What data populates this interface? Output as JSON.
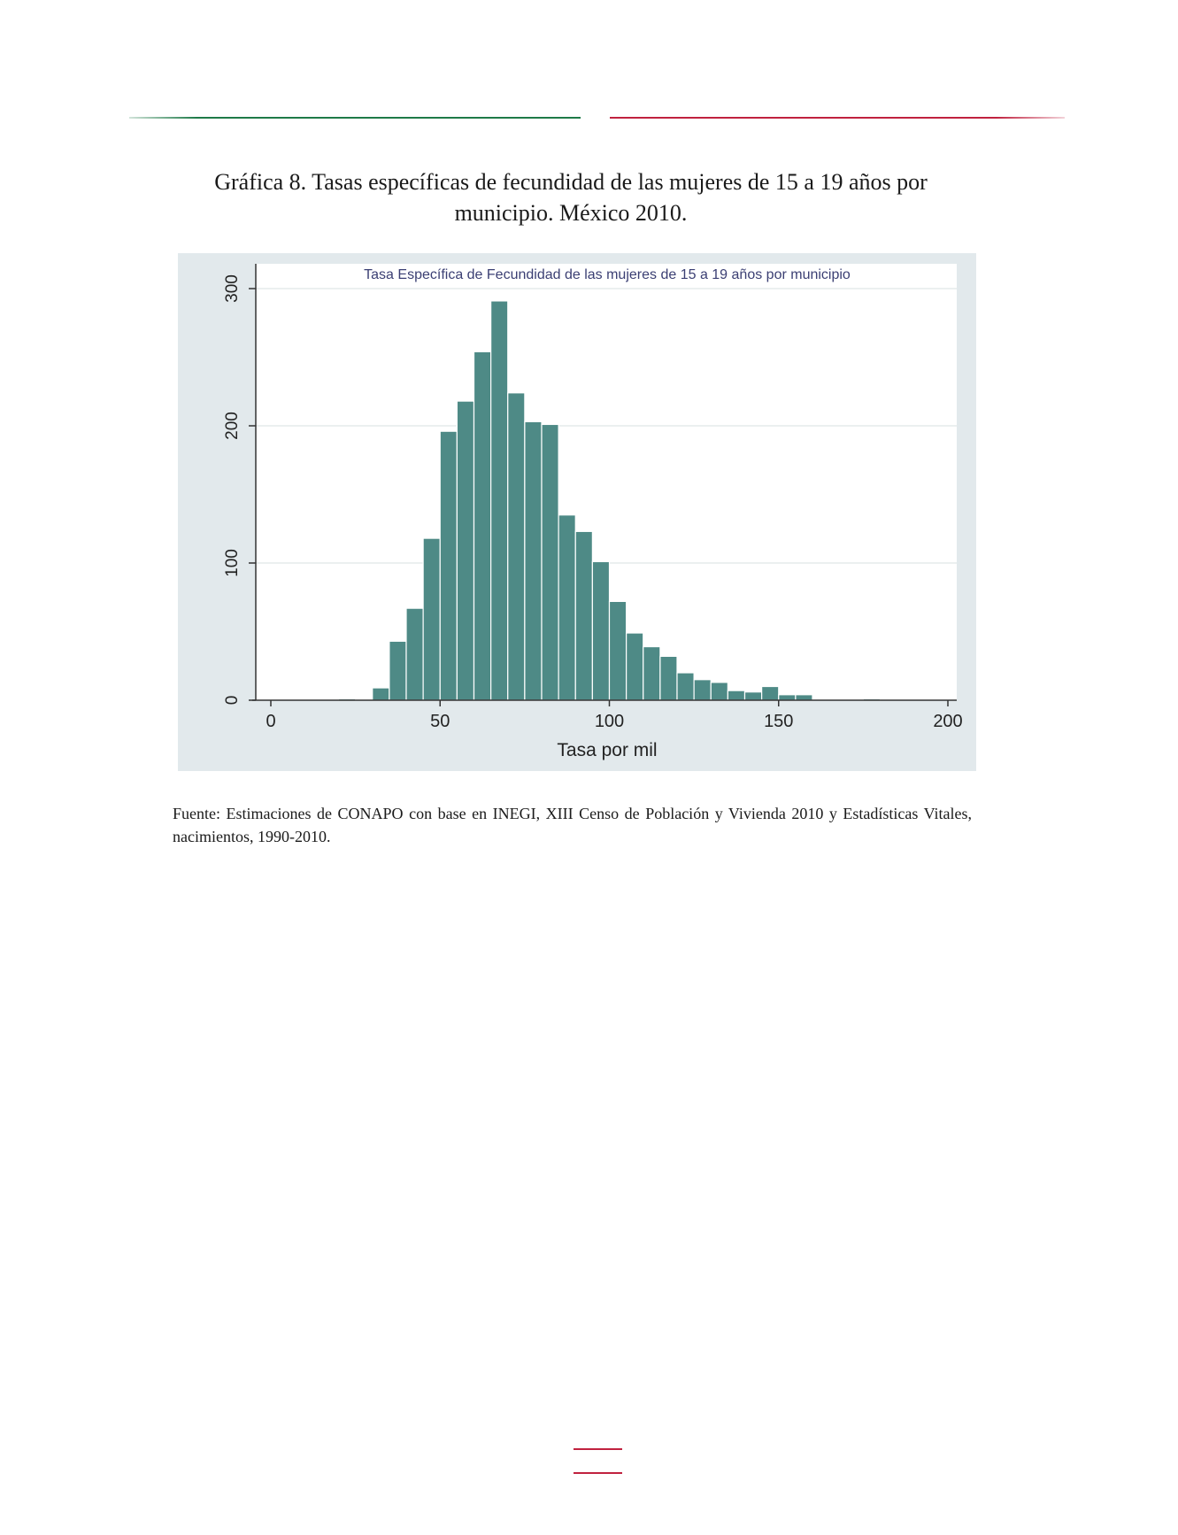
{
  "caption": {
    "line1": "Gráfica 8. Tasas específicas de fecundidad de las mujeres de 15 a 19 años por",
    "line2": "municipio. México 2010."
  },
  "source": "Fuente: Estimaciones de CONAPO con base en INEGI, XIII Censo de Población y Vivienda 2010 y Estadísticas Vitales, nacimientos, 1990-2010.",
  "colors": {
    "rule_left": "#1e7a48",
    "rule_right": "#c0223f",
    "bars": "#4e8a86",
    "panel": "#e2e9ec",
    "title_text": "#3b3f73"
  },
  "chart_data": {
    "type": "bar",
    "title": "Tasa Específica de Fecundidad de las mujeres de 15 a 19 años por municipio",
    "xlabel": "Tasa por mil",
    "ylabel": "",
    "xlim": [
      0,
      200
    ],
    "ylim": [
      0,
      300
    ],
    "xticks": [
      0,
      50,
      100,
      150,
      200
    ],
    "yticks": [
      0,
      100,
      200,
      300
    ],
    "grid": "horizontal",
    "bin_width": 5,
    "bins": [
      {
        "x0": 0,
        "x1": 5,
        "count": 0
      },
      {
        "x0": 5,
        "x1": 10,
        "count": 0
      },
      {
        "x0": 10,
        "x1": 15,
        "count": 0
      },
      {
        "x0": 15,
        "x1": 20,
        "count": 0
      },
      {
        "x0": 20,
        "x1": 25,
        "count": 1
      },
      {
        "x0": 25,
        "x1": 30,
        "count": 0
      },
      {
        "x0": 30,
        "x1": 35,
        "count": 9
      },
      {
        "x0": 35,
        "x1": 40,
        "count": 43
      },
      {
        "x0": 40,
        "x1": 45,
        "count": 67
      },
      {
        "x0": 45,
        "x1": 50,
        "count": 118
      },
      {
        "x0": 50,
        "x1": 55,
        "count": 196
      },
      {
        "x0": 55,
        "x1": 60,
        "count": 218
      },
      {
        "x0": 60,
        "x1": 65,
        "count": 254
      },
      {
        "x0": 65,
        "x1": 70,
        "count": 291
      },
      {
        "x0": 70,
        "x1": 75,
        "count": 224
      },
      {
        "x0": 75,
        "x1": 80,
        "count": 203
      },
      {
        "x0": 80,
        "x1": 85,
        "count": 201
      },
      {
        "x0": 85,
        "x1": 90,
        "count": 135
      },
      {
        "x0": 90,
        "x1": 95,
        "count": 123
      },
      {
        "x0": 95,
        "x1": 100,
        "count": 101
      },
      {
        "x0": 100,
        "x1": 105,
        "count": 72
      },
      {
        "x0": 105,
        "x1": 110,
        "count": 49
      },
      {
        "x0": 110,
        "x1": 115,
        "count": 39
      },
      {
        "x0": 115,
        "x1": 120,
        "count": 32
      },
      {
        "x0": 120,
        "x1": 125,
        "count": 20
      },
      {
        "x0": 125,
        "x1": 130,
        "count": 15
      },
      {
        "x0": 130,
        "x1": 135,
        "count": 13
      },
      {
        "x0": 135,
        "x1": 140,
        "count": 7
      },
      {
        "x0": 140,
        "x1": 145,
        "count": 6
      },
      {
        "x0": 145,
        "x1": 150,
        "count": 10
      },
      {
        "x0": 150,
        "x1": 155,
        "count": 4
      },
      {
        "x0": 155,
        "x1": 160,
        "count": 4
      },
      {
        "x0": 160,
        "x1": 165,
        "count": 0
      },
      {
        "x0": 165,
        "x1": 170,
        "count": 0
      },
      {
        "x0": 170,
        "x1": 175,
        "count": 0
      },
      {
        "x0": 175,
        "x1": 180,
        "count": 1
      },
      {
        "x0": 180,
        "x1": 185,
        "count": 0
      },
      {
        "x0": 185,
        "x1": 190,
        "count": 0
      },
      {
        "x0": 190,
        "x1": 195,
        "count": 0
      },
      {
        "x0": 195,
        "x1": 200,
        "count": 0
      }
    ]
  }
}
